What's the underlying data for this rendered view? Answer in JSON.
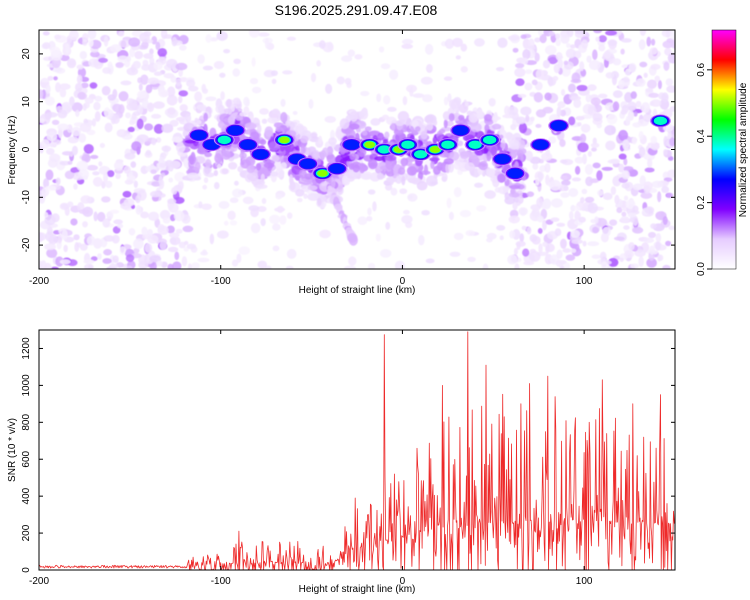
{
  "page_title": "S196.2025.291.09.47.E08",
  "chart_data": [
    {
      "type": "heatmap",
      "name": "spectrogram",
      "title": "S196.2025.291.09.47.E08",
      "xlabel": "Height of straight line (km)",
      "ylabel": "Frequency (Hz)",
      "xlim": [
        -200,
        150
      ],
      "ylim": [
        -25,
        25
      ],
      "xticks": [
        -200,
        -100,
        0,
        100
      ],
      "yticks": [
        -20,
        -10,
        0,
        10,
        20
      ],
      "colorbar": {
        "label": "Normalized spectral amplitude",
        "range": [
          0.0,
          0.72
        ],
        "ticks": [
          0.0,
          0.2,
          0.4,
          0.6
        ],
        "colormap": [
          "#ffffff",
          "#e6ccff",
          "#8000ff",
          "#0000ff",
          "#00ffff",
          "#00ff00",
          "#ffff00",
          "#ff0000",
          "#ff00ff"
        ]
      },
      "blobs": [
        {
          "x": -112,
          "y": 3,
          "v": 0.35
        },
        {
          "x": -105,
          "y": 1,
          "v": 0.3
        },
        {
          "x": -98,
          "y": 2,
          "v": 0.4
        },
        {
          "x": -92,
          "y": 4,
          "v": 0.3
        },
        {
          "x": -85,
          "y": 1,
          "v": 0.35
        },
        {
          "x": -78,
          "y": -1,
          "v": 0.3
        },
        {
          "x": -65,
          "y": 2,
          "v": 0.55
        },
        {
          "x": -58,
          "y": -2,
          "v": 0.35
        },
        {
          "x": -52,
          "y": -3,
          "v": 0.3
        },
        {
          "x": -44,
          "y": -5,
          "v": 0.5
        },
        {
          "x": -36,
          "y": -4,
          "v": 0.35
        },
        {
          "x": -28,
          "y": 1,
          "v": 0.3
        },
        {
          "x": -18,
          "y": 1,
          "v": 0.6
        },
        {
          "x": -10,
          "y": 0,
          "v": 0.45
        },
        {
          "x": -2,
          "y": 0,
          "v": 0.5
        },
        {
          "x": 3,
          "y": 1,
          "v": 0.4
        },
        {
          "x": 10,
          "y": -1,
          "v": 0.4
        },
        {
          "x": 18,
          "y": 0,
          "v": 0.55
        },
        {
          "x": 25,
          "y": 1,
          "v": 0.4
        },
        {
          "x": 32,
          "y": 4,
          "v": 0.35
        },
        {
          "x": 40,
          "y": 1,
          "v": 0.4
        },
        {
          "x": 48,
          "y": 2,
          "v": 0.4
        },
        {
          "x": 55,
          "y": -2,
          "v": 0.35
        },
        {
          "x": 62,
          "y": -5,
          "v": 0.3
        },
        {
          "x": 76,
          "y": 1,
          "v": 0.3
        },
        {
          "x": 86,
          "y": 5,
          "v": 0.3
        },
        {
          "x": 142,
          "y": 6,
          "v": 0.45
        }
      ],
      "streak": {
        "x": [
          -40,
          -27
        ],
        "y": [
          -8,
          -19
        ]
      },
      "noise_regions": [
        {
          "x": [
            -200,
            -118
          ],
          "density": 0.25
        },
        {
          "x": [
            60,
            150
          ],
          "density": 0.22
        }
      ]
    },
    {
      "type": "line",
      "name": "snr",
      "xlabel": "Height of straight line (km)",
      "ylabel": "SNR (10 * v/v)",
      "xlim": [
        -200,
        150
      ],
      "ylim": [
        0,
        1300
      ],
      "xticks": [
        -200,
        -100,
        0,
        100
      ],
      "yticks": [
        0,
        200,
        400,
        600,
        800,
        1000,
        1200
      ],
      "color": "#ee2a2a",
      "x_step_km": 0.4,
      "envelope": [
        {
          "x": -200,
          "base": 15,
          "amp": 30
        },
        {
          "x": -120,
          "base": 15,
          "amp": 30
        },
        {
          "x": -112,
          "base": 30,
          "amp": 80
        },
        {
          "x": -80,
          "base": 40,
          "amp": 140
        },
        {
          "x": -38,
          "base": 40,
          "amp": 120
        },
        {
          "x": -28,
          "base": 110,
          "amp": 220
        },
        {
          "x": -10,
          "base": 160,
          "amp": 360
        },
        {
          "x": 20,
          "base": 230,
          "amp": 620
        },
        {
          "x": 60,
          "base": 270,
          "amp": 700
        },
        {
          "x": 100,
          "base": 270,
          "amp": 650
        },
        {
          "x": 150,
          "base": 250,
          "amp": 560
        }
      ],
      "peaks": [
        {
          "x": -10,
          "y": 1275
        },
        {
          "x": 36,
          "y": 1290
        },
        {
          "x": 46,
          "y": 1110
        },
        {
          "x": 22,
          "y": 1000
        },
        {
          "x": 70,
          "y": 1010
        },
        {
          "x": 80,
          "y": 1050
        },
        {
          "x": 110,
          "y": 1030
        },
        {
          "x": 142,
          "y": 950
        },
        {
          "x": 127,
          "y": 900
        },
        {
          "x": -90,
          "y": 210
        },
        {
          "x": -26,
          "y": 390
        }
      ]
    }
  ]
}
